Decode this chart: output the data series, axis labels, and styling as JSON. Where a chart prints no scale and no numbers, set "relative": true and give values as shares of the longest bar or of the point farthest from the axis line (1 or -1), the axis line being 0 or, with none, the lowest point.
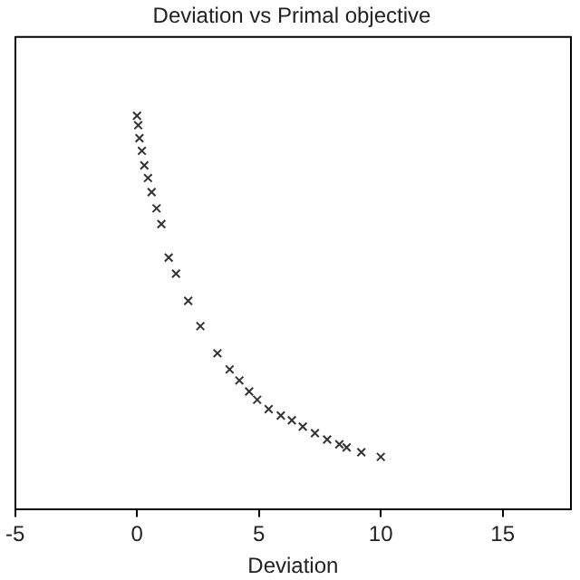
{
  "chart_data": {
    "type": "scatter",
    "title": "Deviation vs Primal objective",
    "xlabel": "Deviation",
    "relative": true,
    "tick_labels": "x",
    "grid": false,
    "legend": false,
    "marker": "cross",
    "xlim": [
      -5,
      17.8
    ],
    "xticks": [
      -5,
      0,
      5,
      10,
      15
    ],
    "series": [
      {
        "color": "#333333",
        "x": [
          0,
          0.05,
          0.1,
          0.2,
          0.3,
          0.45,
          0.6,
          0.8,
          1.0,
          1.3,
          1.6,
          2.1,
          2.6,
          3.3,
          3.8,
          4.2,
          4.6,
          4.93,
          5.4,
          5.9,
          6.35,
          6.8,
          7.3,
          7.8,
          8.3,
          8.6,
          9.2,
          10.0
        ],
        "values": [
          1.0,
          0.976,
          0.943,
          0.911,
          0.874,
          0.842,
          0.806,
          0.765,
          0.725,
          0.64,
          0.599,
          0.53,
          0.466,
          0.397,
          0.356,
          0.328,
          0.3,
          0.279,
          0.255,
          0.239,
          0.227,
          0.211,
          0.194,
          0.178,
          0.166,
          0.158,
          0.146,
          0.134
        ]
      }
    ]
  }
}
